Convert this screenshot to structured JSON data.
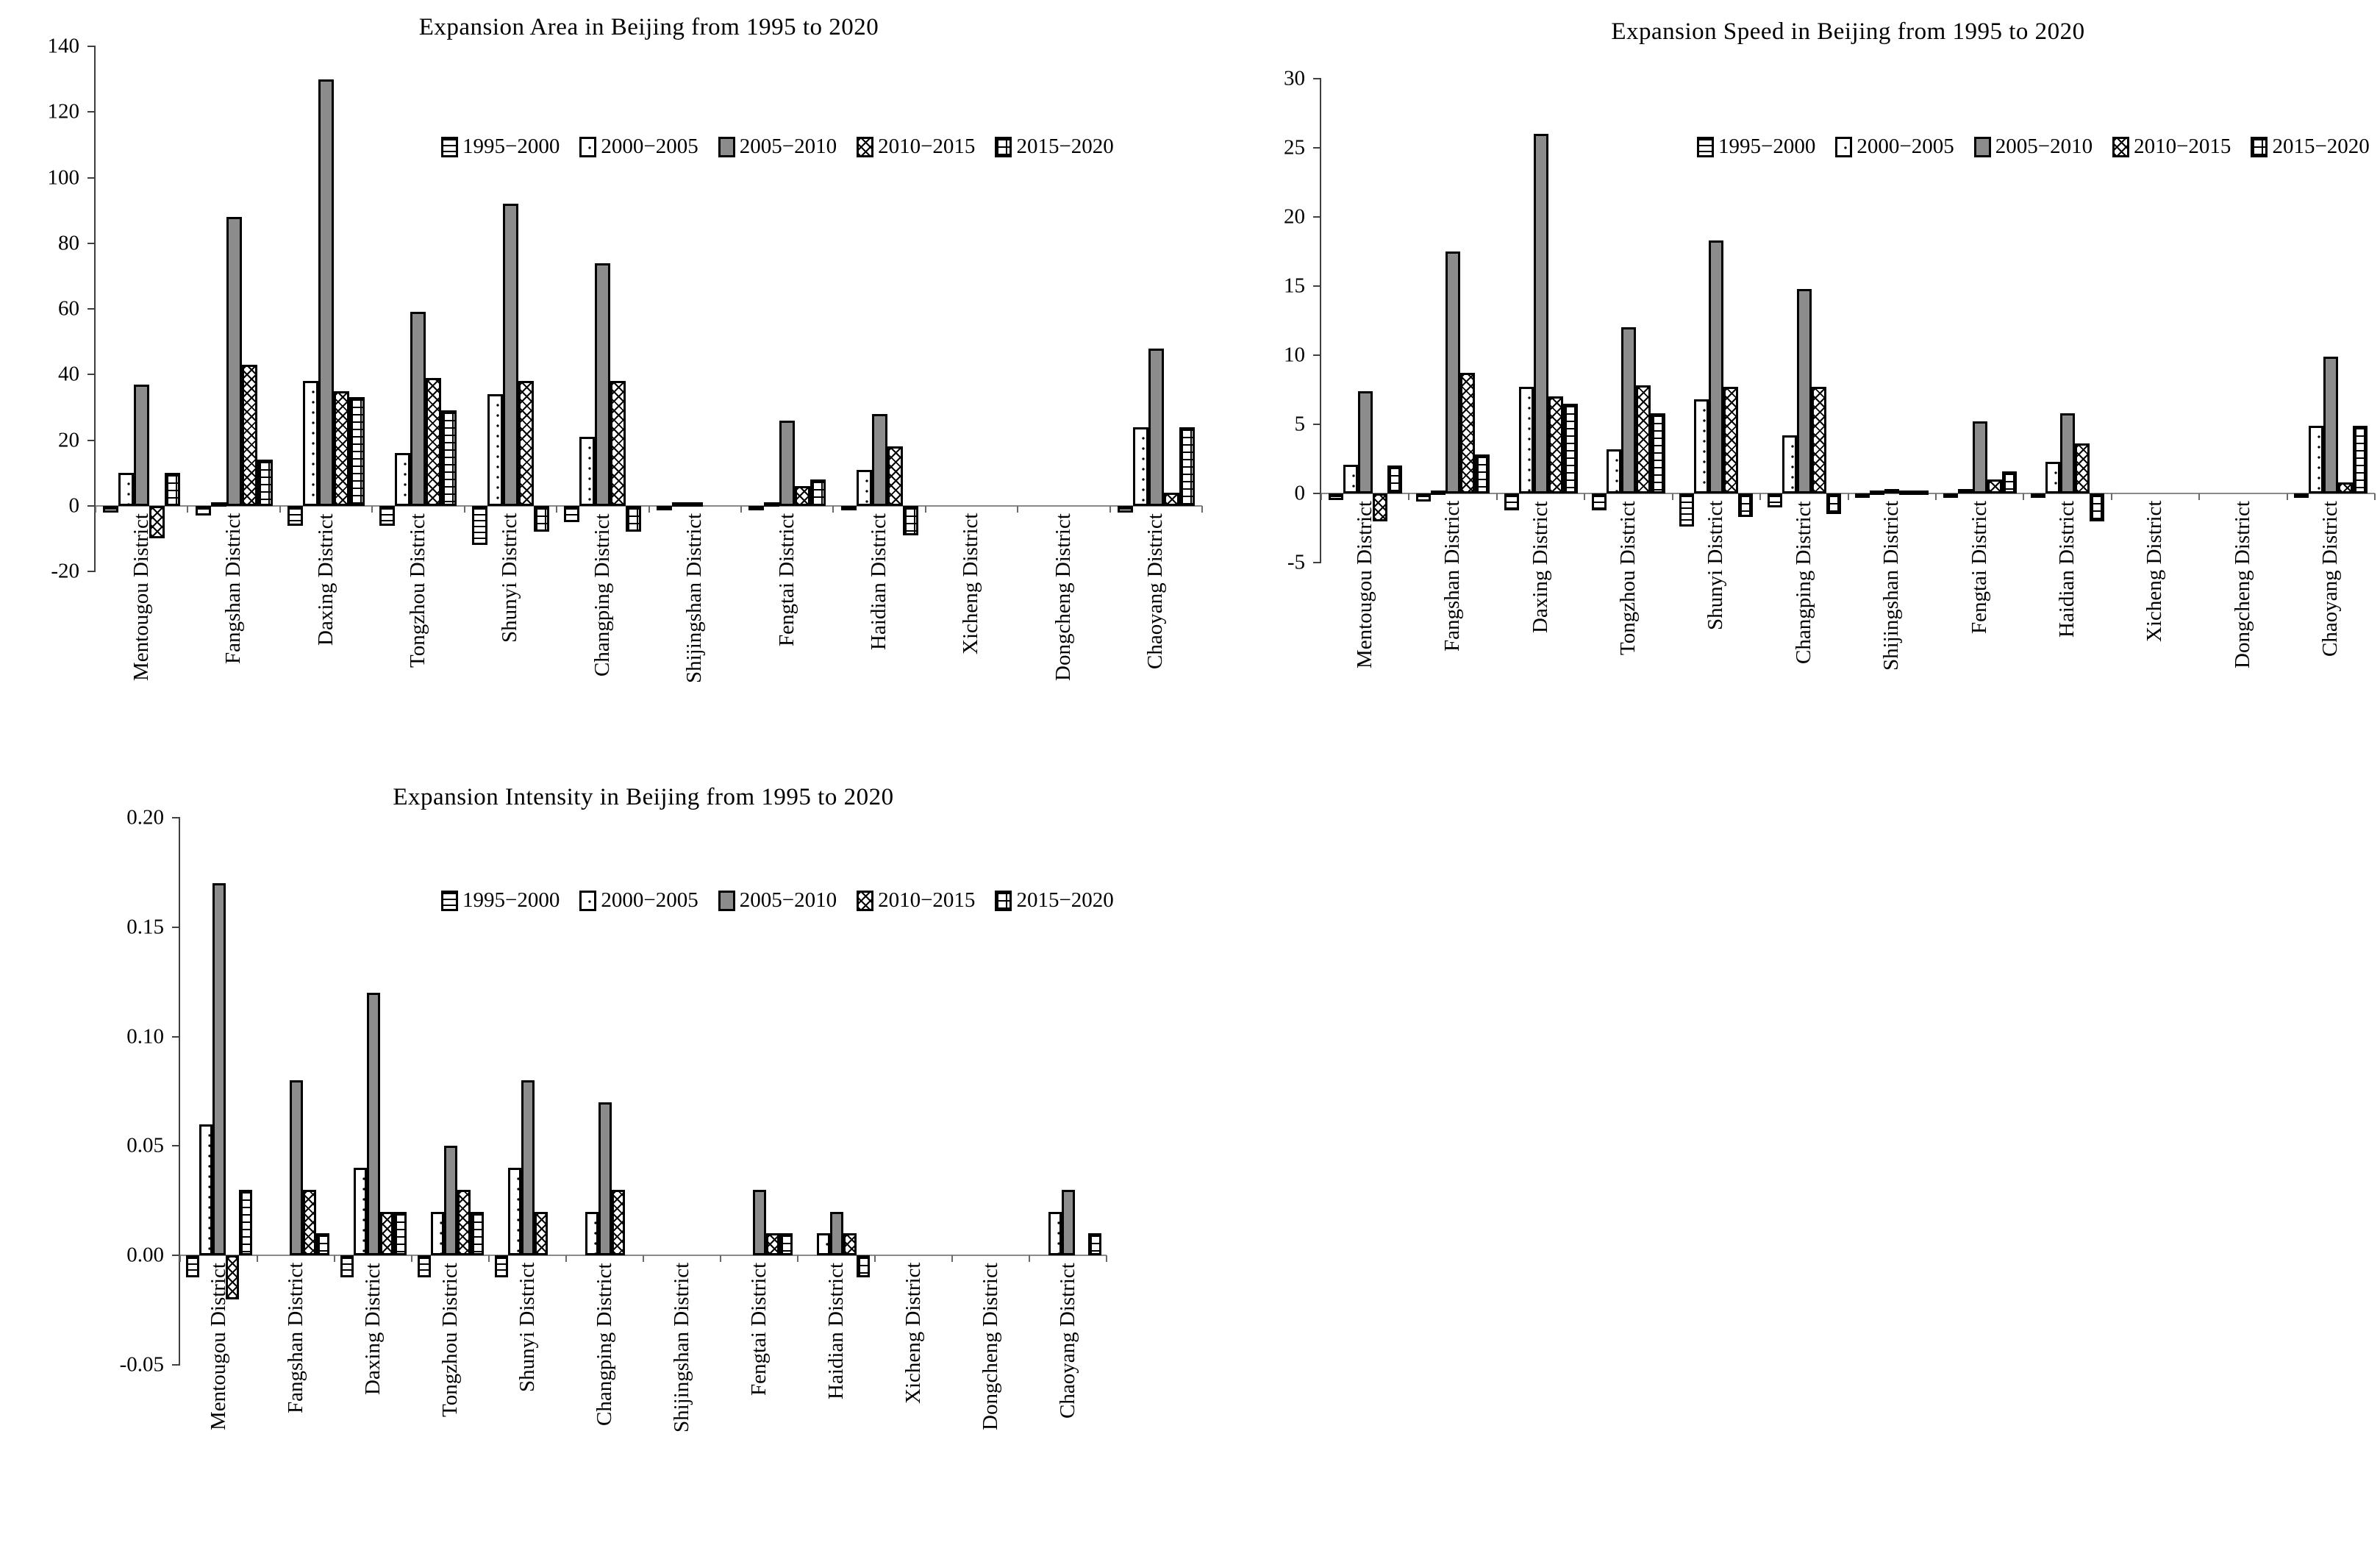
{
  "figure": {
    "background": "#ffffff",
    "text_color": "#000000",
    "bar_gray": "#8c8c8c",
    "axis_color": "#404040",
    "zero_line_color": "#8a8a8a"
  },
  "categories": [
    "Mentougou District",
    "Fangshan District",
    "Daxing District",
    "Tongzhou District",
    "Shunyi District",
    "Changping District",
    "Shijingshan District",
    "Fengtai District",
    "Haidian District",
    "Xicheng District",
    "Dongcheng District",
    "Chaoyang District"
  ],
  "series_labels": [
    "1995−2000",
    "2000−2005",
    "2005−2010",
    "2010−2015",
    "2015−2020"
  ],
  "series_patterns": [
    "hlines",
    "dots",
    "solid",
    "cross",
    "brick"
  ],
  "chart_data": [
    {
      "type": "bar",
      "title": "Expansion Area in Beijing from 1995 to 2020",
      "ylim": [
        -20,
        140
      ],
      "grid": false,
      "legend_position": "top-inside",
      "yticks": [
        {
          "v": 140,
          "label": "140"
        },
        {
          "v": 120,
          "label": "120"
        },
        {
          "v": 100,
          "label": "100"
        },
        {
          "v": 80,
          "label": "80"
        },
        {
          "v": 60,
          "label": "60"
        },
        {
          "v": 40,
          "label": "40"
        },
        {
          "v": 20,
          "label": "20"
        },
        {
          "v": 0,
          "label": "0"
        },
        {
          "v": -20,
          "label": "-20"
        }
      ],
      "series": [
        {
          "name": "1995−2000",
          "pattern": "hlines",
          "values": [
            -2,
            -3,
            -6,
            -6,
            -12,
            -5,
            -1,
            -1,
            -1,
            0,
            0,
            -2
          ]
        },
        {
          "name": "2000−2005",
          "pattern": "dots",
          "values": [
            10,
            1,
            38,
            16,
            34,
            21,
            1,
            1,
            11,
            0,
            0,
            24
          ]
        },
        {
          "name": "2005−2010",
          "pattern": "solid",
          "values": [
            37,
            88,
            130,
            59,
            92,
            74,
            1,
            26,
            28,
            0,
            0,
            48
          ]
        },
        {
          "name": "2010−2015",
          "pattern": "cross",
          "values": [
            -10,
            43,
            35,
            39,
            38,
            38,
            0,
            6,
            18,
            0,
            0,
            4
          ]
        },
        {
          "name": "2015−2020",
          "pattern": "brick",
          "values": [
            10,
            14,
            33,
            29,
            -8,
            -8,
            0,
            8,
            -9,
            0,
            0,
            24
          ]
        }
      ]
    },
    {
      "type": "bar",
      "title": "Expansion Speed in Beijing from 1995 to 2020",
      "ylim": [
        -5,
        30
      ],
      "grid": false,
      "legend_position": "top-inside",
      "yticks": [
        {
          "v": 30,
          "label": "30"
        },
        {
          "v": 25,
          "label": "25"
        },
        {
          "v": 20,
          "label": "20"
        },
        {
          "v": 15,
          "label": "15"
        },
        {
          "v": 10,
          "label": "10"
        },
        {
          "v": 5,
          "label": "5"
        },
        {
          "v": 0,
          "label": "0"
        },
        {
          "v": -5,
          "label": "-5"
        }
      ],
      "series": [
        {
          "name": "1995−2000",
          "pattern": "hlines",
          "values": [
            -0.5,
            -0.6,
            -1.2,
            -1.2,
            -2.4,
            -1.0,
            -0.2,
            -0.3,
            -0.3,
            0,
            0,
            -0.3
          ]
        },
        {
          "name": "2000−2005",
          "pattern": "dots",
          "values": [
            2.1,
            0.2,
            7.7,
            3.2,
            6.8,
            4.2,
            0.1,
            0.3,
            2.3,
            0,
            0,
            4.9
          ]
        },
        {
          "name": "2005−2010",
          "pattern": "solid",
          "values": [
            7.4,
            17.5,
            26.0,
            12.0,
            18.3,
            14.8,
            0.3,
            5.2,
            5.8,
            0,
            0,
            9.9
          ]
        },
        {
          "name": "2010−2015",
          "pattern": "cross",
          "values": [
            -2.0,
            8.7,
            7.0,
            7.8,
            7.7,
            7.7,
            0.1,
            1.0,
            3.6,
            0,
            0,
            0.8
          ]
        },
        {
          "name": "2015−2020",
          "pattern": "brick",
          "values": [
            2.0,
            2.8,
            6.5,
            5.8,
            -1.7,
            -1.5,
            0.1,
            1.6,
            -2.0,
            0,
            0,
            4.9
          ]
        }
      ]
    },
    {
      "type": "bar",
      "title": "Expansion Intensity in Beijing from 1995 to 2020",
      "ylim": [
        -0.05,
        0.2
      ],
      "grid": false,
      "legend_position": "top-inside",
      "yticks": [
        {
          "v": 0.2,
          "label": "0.20"
        },
        {
          "v": 0.15,
          "label": "0.15"
        },
        {
          "v": 0.1,
          "label": "0.10"
        },
        {
          "v": 0.05,
          "label": "0.05"
        },
        {
          "v": 0.0,
          "label": "0.00"
        },
        {
          "v": -0.05,
          "label": "-0.05"
        }
      ],
      "series": [
        {
          "name": "1995−2000",
          "pattern": "hlines",
          "values": [
            -0.01,
            0,
            -0.01,
            -0.01,
            -0.01,
            0,
            0,
            0,
            0,
            0,
            0,
            0
          ]
        },
        {
          "name": "2000−2005",
          "pattern": "dots",
          "values": [
            0.06,
            0,
            0.04,
            0.02,
            0.04,
            0.02,
            0,
            0,
            0.01,
            0,
            0,
            0.02
          ]
        },
        {
          "name": "2005−2010",
          "pattern": "solid",
          "values": [
            0.17,
            0.08,
            0.12,
            0.05,
            0.08,
            0.07,
            0,
            0.03,
            0.02,
            0,
            0,
            0.03
          ]
        },
        {
          "name": "2010−2015",
          "pattern": "cross",
          "values": [
            -0.02,
            0.03,
            0.02,
            0.03,
            0.02,
            0.03,
            0,
            0.01,
            0.01,
            0,
            0,
            0
          ]
        },
        {
          "name": "2015−2020",
          "pattern": "brick",
          "values": [
            0.03,
            0.01,
            0.02,
            0.02,
            0,
            0,
            0,
            0.01,
            -0.01,
            0,
            0,
            0.01
          ]
        }
      ]
    }
  ]
}
